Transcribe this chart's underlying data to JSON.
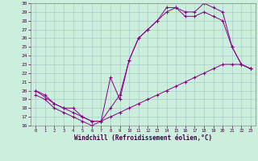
{
  "xlabel": "Windchill (Refroidissement éolien,°C)",
  "background_color": "#cceedd",
  "grid_color": "#aacccc",
  "line_color": "#880088",
  "xlim": [
    -0.5,
    23.5
  ],
  "ylim": [
    16,
    30
  ],
  "xticks": [
    0,
    1,
    2,
    3,
    4,
    5,
    6,
    7,
    8,
    9,
    10,
    11,
    12,
    13,
    14,
    15,
    16,
    17,
    18,
    19,
    20,
    21,
    22,
    23
  ],
  "yticks": [
    16,
    17,
    18,
    19,
    20,
    21,
    22,
    23,
    24,
    25,
    26,
    27,
    28,
    29,
    30
  ],
  "line1_x": [
    0,
    1,
    2,
    3,
    4,
    5,
    6,
    7,
    8,
    9,
    10,
    11,
    12,
    13,
    14,
    15,
    16,
    17,
    18,
    19,
    20,
    21,
    22,
    23
  ],
  "line1_y": [
    20,
    19.5,
    18.5,
    18,
    17.5,
    17,
    16.5,
    16.5,
    17,
    17.5,
    18,
    18.5,
    19,
    19.5,
    20,
    20.5,
    21,
    21.5,
    22,
    22.5,
    23,
    23,
    23,
    22.5
  ],
  "line2_x": [
    0,
    2,
    3,
    4,
    5,
    6,
    7,
    8,
    9,
    10,
    11,
    12,
    13,
    14,
    15,
    16,
    17,
    18,
    19,
    20,
    21,
    22,
    23
  ],
  "line2_y": [
    20,
    18.5,
    18,
    18,
    17,
    16.5,
    16.5,
    21.5,
    19,
    23.5,
    26,
    27,
    28,
    29.5,
    29.5,
    29,
    29,
    30,
    29.5,
    29,
    25,
    23,
    22.5
  ],
  "line3_x": [
    0,
    1,
    2,
    3,
    4,
    5,
    6,
    7,
    8,
    9,
    10,
    11,
    12,
    13,
    14,
    15,
    16,
    17,
    18,
    19,
    20,
    21,
    22,
    23
  ],
  "line3_y": [
    19.5,
    19,
    18,
    17.5,
    17,
    16.5,
    16,
    16.5,
    18,
    19.5,
    23.5,
    26,
    27,
    28,
    29,
    29.5,
    28.5,
    28.5,
    29,
    28.5,
    28,
    25,
    23,
    22.5
  ]
}
